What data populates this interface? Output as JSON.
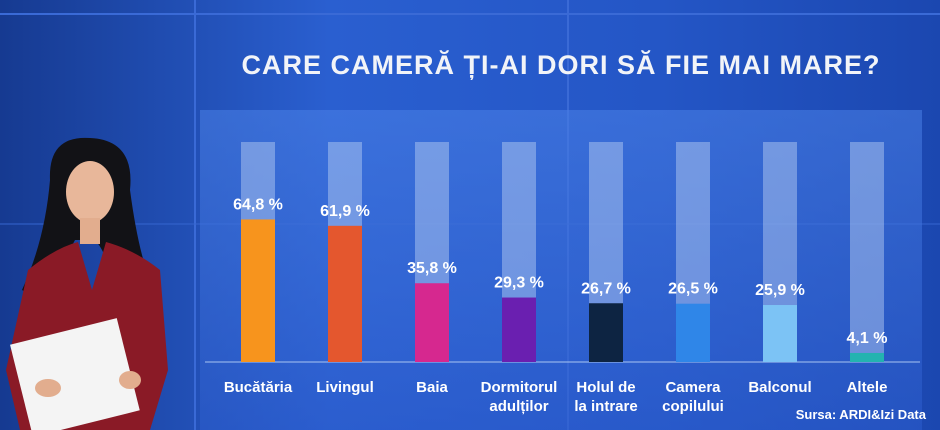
{
  "chart_data": {
    "type": "bar",
    "title": "CARE CAMERĂ ȚI-AI DORI SĂ FIE MAI MARE?",
    "categories": [
      [
        "Bucătăria"
      ],
      [
        "Livingul"
      ],
      [
        "Baia"
      ],
      [
        "Dormitorul",
        "adulților"
      ],
      [
        "Holul de",
        "la intrare"
      ],
      [
        "Camera",
        "copilului"
      ],
      [
        "Balconul"
      ],
      [
        "Altele"
      ]
    ],
    "values": [
      64.8,
      61.9,
      35.8,
      29.3,
      26.7,
      26.5,
      25.9,
      4.1
    ],
    "value_labels": [
      "64,8 %",
      "61,9 %",
      "35,8 %",
      "29,3 %",
      "26,7 %",
      "26,5 %",
      "25,9 %",
      "4,1 %"
    ],
    "colors": [
      "#f7941d",
      "#e4572e",
      "#d6288f",
      "#6a1fb0",
      "#0d2442",
      "#2f86e8",
      "#7cc3f5",
      "#23b3b0"
    ],
    "ylim": [
      0,
      100
    ],
    "grid": false,
    "legend": "none"
  },
  "source": "Sursa: ARDI&Izi Data"
}
